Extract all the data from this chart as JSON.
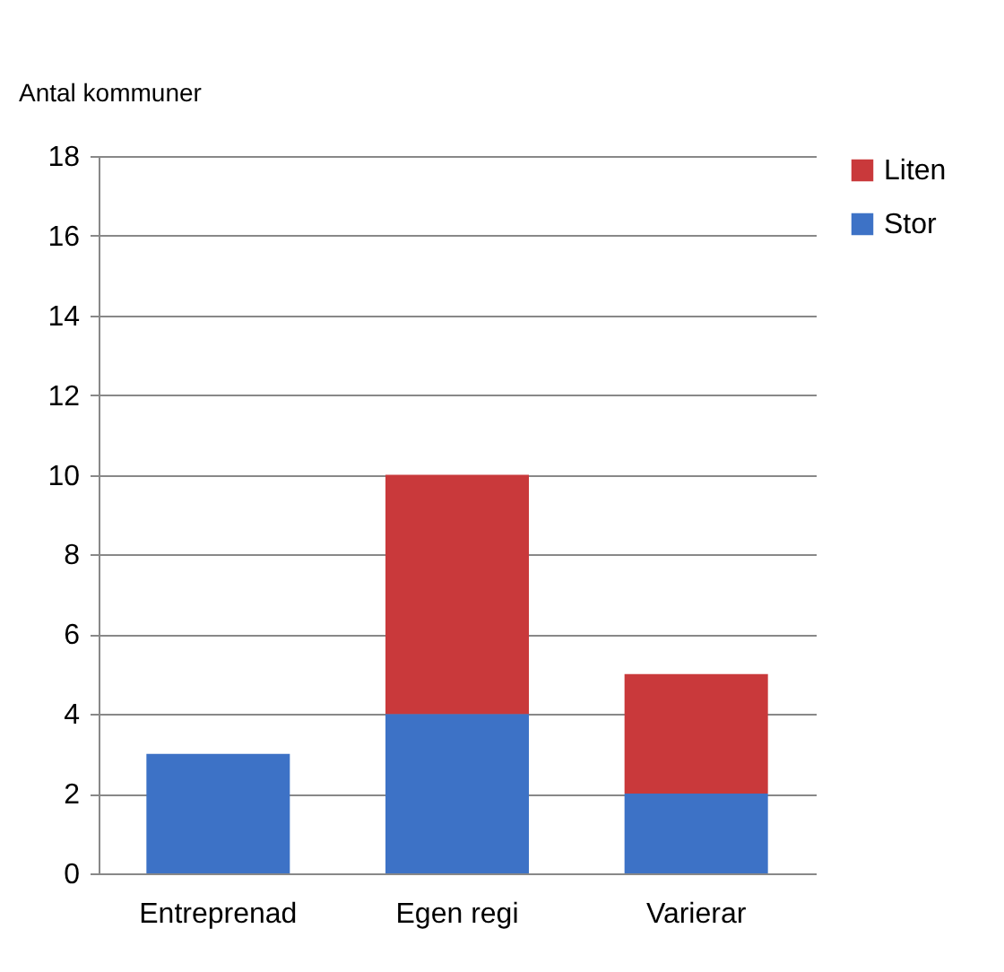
{
  "chart_data": {
    "type": "bar",
    "ylabel": "Antal kommuner",
    "stacked": true,
    "categories": [
      "Entreprenad",
      "Egen regi",
      "Varierar"
    ],
    "series": [
      {
        "name": "Stor",
        "color": "#3d72c6",
        "values": [
          3,
          4,
          2
        ]
      },
      {
        "name": "Liten",
        "color": "#c9393b",
        "values": [
          null,
          6,
          3
        ]
      }
    ],
    "ylim": [
      0,
      18
    ],
    "yticks": [
      0,
      2,
      4,
      6,
      8,
      10,
      12,
      14,
      16,
      18
    ],
    "grid": "y",
    "legend": "right"
  }
}
